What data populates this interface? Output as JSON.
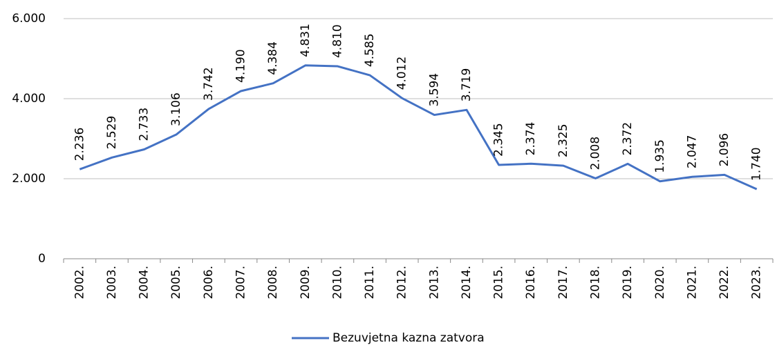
{
  "chart_data": {
    "type": "line",
    "categories": [
      "2002.",
      "2003.",
      "2004.",
      "2005.",
      "2006.",
      "2007.",
      "2008.",
      "2009.",
      "2010.",
      "2011.",
      "2012.",
      "2013.",
      "2014.",
      "2015.",
      "2016.",
      "2017.",
      "2018.",
      "2019.",
      "2020.",
      "2021.",
      "2022.",
      "2023."
    ],
    "series": [
      {
        "name": "Bezuvjetna kazna zatvora",
        "color": "#4472c4",
        "values": [
          2236,
          2529,
          2733,
          3106,
          3742,
          4190,
          4384,
          4831,
          4810,
          4585,
          4012,
          3594,
          3719,
          2345,
          2374,
          2325,
          2008,
          2372,
          1935,
          2047,
          2096,
          1740
        ],
        "value_labels": [
          "2.236",
          "2.529",
          "2.733",
          "3.106",
          "3.742",
          "4.190",
          "4.384",
          "4.831",
          "4.810",
          "4.585",
          "4.012",
          "3.594",
          "3.719",
          "2.345",
          "2.374",
          "2.325",
          "2.008",
          "2.372",
          "1.935",
          "2.047",
          "2.096",
          "1.740"
        ]
      }
    ],
    "ylim": [
      0,
      6000
    ],
    "yticks": [
      0,
      {
        "value": 2000,
        "label": "2.000"
      },
      {
        "value": 4000,
        "label": "4.000"
      },
      {
        "value": 6000,
        "label": "6.000"
      }
    ],
    "grid": true,
    "legend": "bottom"
  }
}
